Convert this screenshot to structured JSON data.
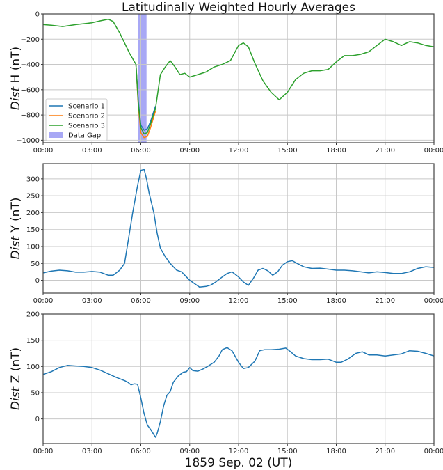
{
  "chart_data": [
    {
      "type": "line",
      "title": "Latitudinally Weighted Hourly Averages",
      "xlabel": "",
      "ylabel": "Dist H (nT)",
      "ylim": [
        -1020,
        0
      ],
      "yticks": [
        0,
        -200,
        -400,
        -600,
        -800,
        -1000
      ],
      "xticks": [
        "00:00",
        "03:00",
        "06:00",
        "09:00",
        "12:00",
        "15:00",
        "18:00",
        "21:00",
        "00:00"
      ],
      "grid": true,
      "legend": {
        "position": "lower left",
        "entries": [
          "Scenario 1",
          "Scenario 2",
          "Scenario 3",
          "Data Gap"
        ]
      },
      "data_gap": {
        "start_hour": 5.85,
        "end_hour": 6.35,
        "color": "#a8a8f5"
      },
      "series": [
        {
          "name": "Scenario 1",
          "color": "#1f77b4",
          "x": [
            5.7,
            5.85,
            6.0,
            6.2,
            6.4,
            6.6,
            6.9
          ],
          "y": [
            -400,
            -700,
            -880,
            -920,
            -910,
            -850,
            -730
          ]
        },
        {
          "name": "Scenario 2",
          "color": "#ff7f0e",
          "x": [
            5.7,
            5.85,
            6.0,
            6.2,
            6.4,
            6.6,
            6.9
          ],
          "y": [
            -400,
            -740,
            -940,
            -980,
            -970,
            -900,
            -770
          ]
        },
        {
          "name": "Scenario 3",
          "color": "#2ca02c",
          "x": [
            0,
            0.5,
            1.2,
            2.0,
            3.0,
            3.5,
            4.0,
            4.3,
            4.7,
            5.0,
            5.3,
            5.7,
            5.85,
            6.0,
            6.2,
            6.4,
            6.6,
            6.9,
            7.2,
            7.5,
            7.8,
            8.1,
            8.4,
            8.7,
            9.0,
            9.5,
            10.0,
            10.5,
            11.0,
            11.5,
            12.0,
            12.3,
            12.6,
            13.0,
            13.5,
            14.0,
            14.5,
            15.0,
            15.5,
            16.0,
            16.5,
            17.0,
            17.5,
            18.0,
            18.5,
            19.0,
            19.5,
            20.0,
            20.5,
            21.0,
            21.5,
            22.0,
            22.5,
            23.0,
            23.5,
            24.0
          ],
          "y": [
            -85,
            -90,
            -100,
            -85,
            -70,
            -55,
            -42,
            -60,
            -150,
            -230,
            -310,
            -400,
            -720,
            -900,
            -950,
            -940,
            -870,
            -750,
            -480,
            -420,
            -370,
            -420,
            -480,
            -470,
            -500,
            -480,
            -460,
            -420,
            -400,
            -370,
            -250,
            -230,
            -260,
            -390,
            -530,
            -620,
            -680,
            -620,
            -520,
            -470,
            -450,
            -450,
            -440,
            -380,
            -330,
            -330,
            -320,
            -300,
            -250,
            -200,
            -220,
            -250,
            -220,
            -230,
            -250,
            -260
          ]
        }
      ]
    },
    {
      "type": "line",
      "xlabel": "",
      "ylabel": "Dist Y (nT)",
      "ylim": [
        -38,
        345
      ],
      "yticks": [
        300,
        250,
        200,
        150,
        100,
        50,
        0
      ],
      "xticks": [
        "00:00",
        "03:00",
        "06:00",
        "09:00",
        "12:00",
        "15:00",
        "18:00",
        "21:00",
        "00:00"
      ],
      "grid": true,
      "series": [
        {
          "name": "Dist Y",
          "color": "#1f77b4",
          "x": [
            0,
            0.5,
            1.0,
            1.5,
            2.0,
            2.5,
            3.0,
            3.5,
            4.0,
            4.3,
            4.7,
            5.0,
            5.2,
            5.5,
            5.8,
            6.0,
            6.2,
            6.35,
            6.5,
            6.8,
            7.0,
            7.2,
            7.5,
            7.8,
            8.0,
            8.2,
            8.5,
            8.8,
            9.0,
            9.3,
            9.6,
            10.0,
            10.3,
            10.6,
            11.0,
            11.3,
            11.6,
            12.0,
            12.3,
            12.6,
            12.9,
            13.2,
            13.5,
            13.8,
            14.1,
            14.4,
            14.7,
            15.0,
            15.3,
            15.6,
            16.0,
            16.5,
            17.0,
            17.5,
            18.0,
            18.5,
            19.0,
            19.5,
            20.0,
            20.5,
            21.0,
            21.5,
            22.0,
            22.5,
            23.0,
            23.5,
            24.0
          ],
          "y": [
            22,
            27,
            30,
            28,
            24,
            24,
            26,
            24,
            15,
            15,
            30,
            50,
            110,
            200,
            280,
            325,
            328,
            300,
            260,
            200,
            140,
            95,
            70,
            50,
            40,
            30,
            25,
            10,
            0,
            -10,
            -20,
            -18,
            -14,
            -5,
            10,
            20,
            25,
            10,
            -5,
            -15,
            5,
            30,
            35,
            28,
            15,
            25,
            45,
            55,
            58,
            50,
            40,
            35,
            36,
            33,
            30,
            30,
            28,
            25,
            22,
            25,
            23,
            20,
            20,
            25,
            35,
            40,
            38
          ]
        }
      ]
    },
    {
      "type": "line",
      "xlabel": "1859 Sep. 02 (UT)",
      "ylabel": "Dist Z (nT)",
      "ylim": [
        -47,
        200
      ],
      "yticks": [
        200,
        150,
        100,
        50,
        0
      ],
      "xticks": [
        "00:00",
        "03:00",
        "06:00",
        "09:00",
        "12:00",
        "15:00",
        "18:00",
        "21:00",
        "00:00"
      ],
      "grid": true,
      "series": [
        {
          "name": "Dist Z",
          "color": "#1f77b4",
          "x": [
            0,
            0.5,
            1.0,
            1.5,
            2.0,
            2.5,
            3.0,
            3.5,
            4.0,
            4.5,
            5.0,
            5.2,
            5.4,
            5.6,
            5.8,
            6.0,
            6.2,
            6.4,
            6.6,
            6.8,
            6.9,
            7.0,
            7.2,
            7.4,
            7.6,
            7.8,
            8.0,
            8.3,
            8.6,
            8.8,
            9.0,
            9.2,
            9.5,
            9.8,
            10.1,
            10.5,
            10.8,
            11.0,
            11.3,
            11.6,
            12.0,
            12.3,
            12.6,
            13.0,
            13.3,
            13.6,
            14.0,
            14.5,
            14.9,
            15.2,
            15.5,
            16.0,
            16.5,
            17.0,
            17.5,
            18.0,
            18.3,
            18.7,
            19.2,
            19.6,
            20.0,
            20.5,
            21.0,
            21.5,
            22.0,
            22.5,
            23.0,
            23.5,
            24.0
          ],
          "y": [
            85,
            90,
            98,
            102,
            101,
            100,
            98,
            93,
            86,
            79,
            73,
            70,
            65,
            67,
            66,
            40,
            10,
            -12,
            -20,
            -30,
            -35,
            -28,
            -5,
            25,
            45,
            52,
            70,
            82,
            89,
            90,
            98,
            92,
            91,
            95,
            100,
            108,
            120,
            132,
            136,
            130,
            108,
            96,
            98,
            110,
            130,
            132,
            132,
            133,
            135,
            128,
            120,
            115,
            113,
            113,
            114,
            108,
            108,
            114,
            125,
            128,
            122,
            122,
            120,
            122,
            124,
            130,
            129,
            125,
            120
          ]
        }
      ]
    }
  ]
}
